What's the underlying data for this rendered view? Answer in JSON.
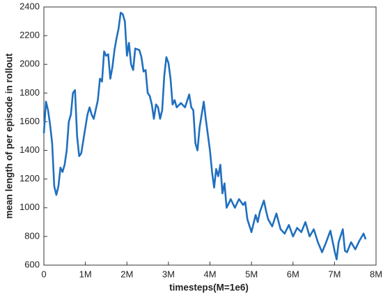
{
  "chart_data": {
    "type": "line",
    "xlabel": "timesteps(M=1e6)",
    "ylabel": "mean length of per episode in rollout",
    "x": [
      0,
      50000,
      100000,
      150000,
      200000,
      250000,
      300000,
      350000,
      400000,
      450000,
      500000,
      550000,
      600000,
      650000,
      700000,
      750000,
      800000,
      850000,
      900000,
      1000000,
      1050000,
      1100000,
      1150000,
      1200000,
      1300000,
      1350000,
      1400000,
      1450000,
      1500000,
      1550000,
      1600000,
      1650000,
      1700000,
      1750000,
      1800000,
      1850000,
      1900000,
      1950000,
      2000000,
      2050000,
      2100000,
      2150000,
      2200000,
      2300000,
      2350000,
      2400000,
      2450000,
      2500000,
      2550000,
      2600000,
      2650000,
      2700000,
      2750000,
      2800000,
      2850000,
      2900000,
      2950000,
      3000000,
      3050000,
      3100000,
      3150000,
      3200000,
      3300000,
      3400000,
      3500000,
      3550000,
      3600000,
      3650000,
      3700000,
      3750000,
      3800000,
      3850000,
      3900000,
      4000000,
      4050000,
      4100000,
      4150000,
      4200000,
      4250000,
      4300000,
      4350000,
      4400000,
      4500000,
      4600000,
      4700000,
      4800000,
      4850000,
      4900000,
      5000000,
      5100000,
      5150000,
      5200000,
      5300000,
      5350000,
      5400000,
      5500000,
      5600000,
      5700000,
      5800000,
      5900000,
      6000000,
      6100000,
      6200000,
      6300000,
      6400000,
      6500000,
      6600000,
      6700000,
      6800000,
      6900000,
      7000000,
      7050000,
      7100000,
      7200000,
      7250000,
      7300000,
      7400000,
      7500000,
      7600000,
      7700000,
      7750000
    ],
    "series": [
      {
        "color": "#1f6fbf",
        "values": [
          1520,
          1740,
          1680,
          1580,
          1450,
          1150,
          1090,
          1150,
          1280,
          1250,
          1300,
          1400,
          1600,
          1650,
          1800,
          1820,
          1500,
          1360,
          1380,
          1560,
          1650,
          1700,
          1650,
          1620,
          1750,
          1900,
          1880,
          2090,
          2060,
          2070,
          1900,
          1980,
          2100,
          2180,
          2250,
          2360,
          2350,
          2300,
          2060,
          2150,
          2000,
          1960,
          2110,
          2100,
          2050,
          1950,
          1960,
          1800,
          1780,
          1720,
          1620,
          1720,
          1700,
          1620,
          1680,
          1920,
          2050,
          2010,
          1900,
          1720,
          1750,
          1700,
          1730,
          1700,
          1790,
          1700,
          1680,
          1450,
          1400,
          1560,
          1650,
          1740,
          1620,
          1400,
          1250,
          1140,
          1270,
          1220,
          1300,
          1100,
          1170,
          1000,
          1060,
          1000,
          1060,
          1020,
          1040,
          920,
          830,
          950,
          900,
          970,
          1050,
          980,
          920,
          870,
          960,
          850,
          820,
          880,
          800,
          860,
          830,
          900,
          800,
          850,
          760,
          690,
          760,
          840,
          700,
          640,
          760,
          850,
          700,
          690,
          760,
          710,
          770,
          820,
          780
        ]
      }
    ],
    "xlim": [
      0,
      8000000
    ],
    "xticks": [
      0,
      {
        "value": 1000000,
        "label": "1M"
      },
      {
        "value": 2000000,
        "label": "2M"
      },
      {
        "value": 3000000,
        "label": "3M"
      },
      {
        "value": 4000000,
        "label": "4M"
      },
      {
        "value": 5000000,
        "label": "5M"
      },
      {
        "value": 6000000,
        "label": "6M"
      },
      {
        "value": 7000000,
        "label": "7M"
      },
      {
        "value": 8000000,
        "label": "8M"
      }
    ],
    "ylim": [
      600,
      2400
    ],
    "yticks": [
      600,
      800,
      1000,
      1200,
      1400,
      1600,
      1800,
      2000,
      2200,
      2400
    ]
  }
}
